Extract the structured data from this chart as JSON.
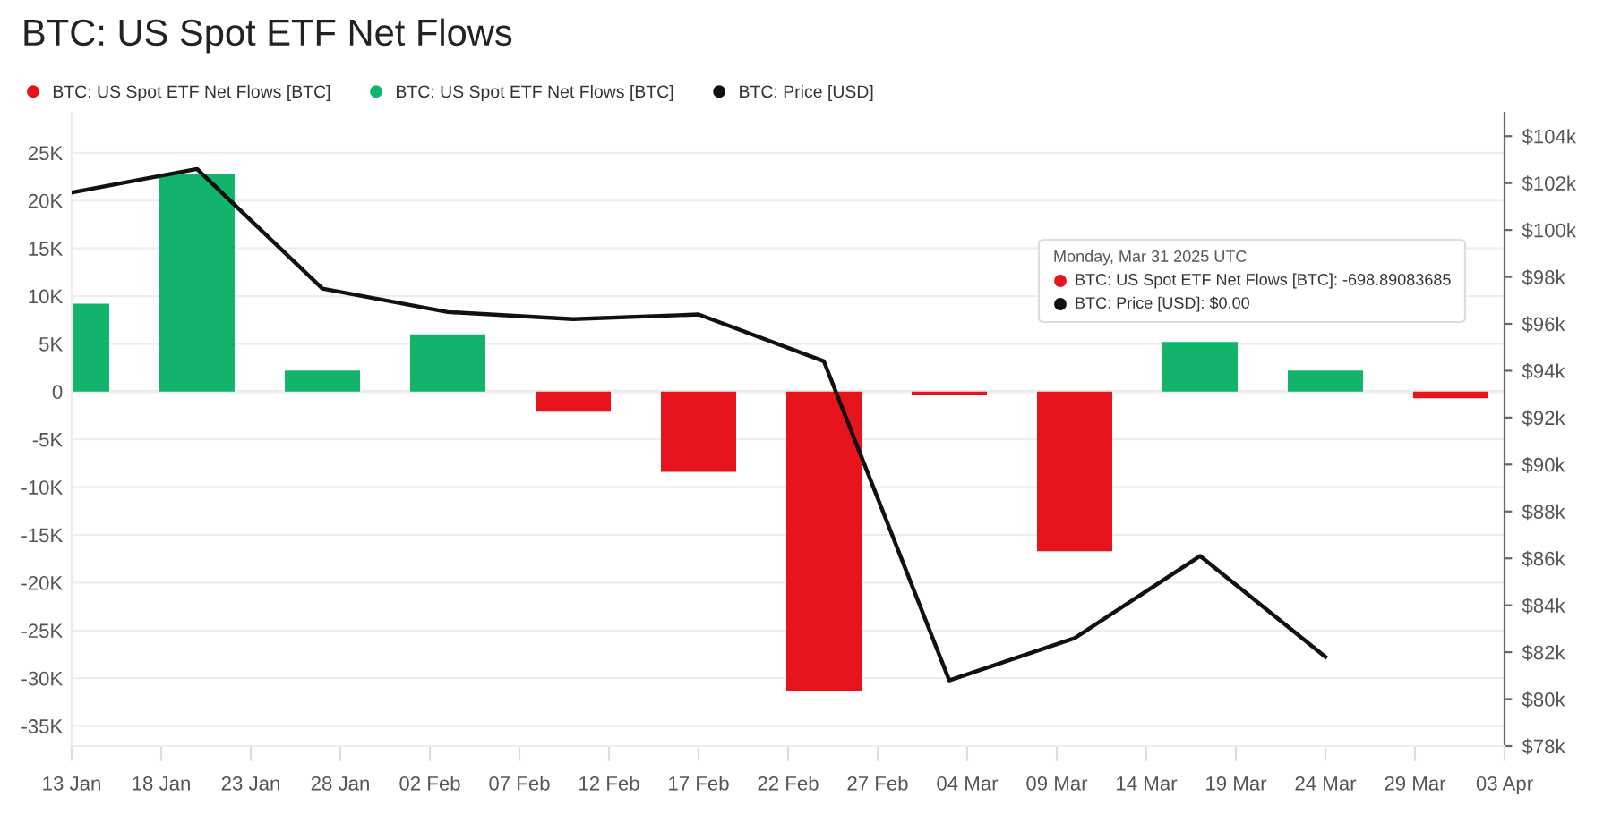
{
  "chart_data": {
    "type": "bar",
    "title": "BTC: US Spot ETF Net Flows",
    "x": [
      "2025-01-13",
      "2025-01-20",
      "2025-01-27",
      "2025-02-03",
      "2025-02-10",
      "2025-02-17",
      "2025-02-24",
      "2025-03-03",
      "2025-03-10",
      "2025-03-17",
      "2025-03-24",
      "2025-03-31"
    ],
    "series": [
      {
        "name": "BTC: US Spot ETF Net Flows [BTC]",
        "color": "#e8141b",
        "values": [
          null,
          null,
          null,
          null,
          -2100,
          -8400,
          -31300,
          -400,
          -16700,
          null,
          null,
          -700
        ]
      },
      {
        "name": "BTC: US Spot ETF Net Flows [BTC]",
        "color": "#12b36a",
        "values": [
          9200,
          22800,
          2200,
          6000,
          null,
          null,
          null,
          null,
          null,
          5200,
          2200,
          null
        ]
      },
      {
        "name": "BTC: Price [USD]",
        "type": "line",
        "axis": "y2",
        "color": "#111111",
        "x": [
          "2025-01-13",
          "2025-01-20",
          "2025-01-27",
          "2025-02-03",
          "2025-02-10",
          "2025-02-17",
          "2025-02-24",
          "2025-03-03",
          "2025-03-10",
          "2025-03-17",
          "2025-03-24"
        ],
        "values": [
          101600,
          102600,
          97500,
          96500,
          96200,
          96400,
          94400,
          80800,
          82600,
          86100,
          81800
        ]
      }
    ],
    "xlim": [
      "2025-01-13",
      "2025-04-03"
    ],
    "xticks": [
      {
        "value": "2025-01-13",
        "label": "13 Jan"
      },
      {
        "value": "2025-01-18",
        "label": "18 Jan"
      },
      {
        "value": "2025-01-23",
        "label": "23 Jan"
      },
      {
        "value": "2025-01-28",
        "label": "28 Jan"
      },
      {
        "value": "2025-02-02",
        "label": "02 Feb"
      },
      {
        "value": "2025-02-07",
        "label": "07 Feb"
      },
      {
        "value": "2025-02-12",
        "label": "12 Feb"
      },
      {
        "value": "2025-02-17",
        "label": "17 Feb"
      },
      {
        "value": "2025-02-22",
        "label": "22 Feb"
      },
      {
        "value": "2025-02-27",
        "label": "27 Feb"
      },
      {
        "value": "2025-03-04",
        "label": "04 Mar"
      },
      {
        "value": "2025-03-09",
        "label": "09 Mar"
      },
      {
        "value": "2025-03-14",
        "label": "14 Mar"
      },
      {
        "value": "2025-03-19",
        "label": "19 Mar"
      },
      {
        "value": "2025-03-24",
        "label": "24 Mar"
      },
      {
        "value": "2025-03-29",
        "label": "29 Mar"
      },
      {
        "value": "2025-04-03",
        "label": "03 Apr"
      }
    ],
    "ylim": [
      -37100,
      29200
    ],
    "yticks": [
      {
        "value": -35000,
        "label": "-35K"
      },
      {
        "value": -30000,
        "label": "-30K"
      },
      {
        "value": -25000,
        "label": "-25K"
      },
      {
        "value": -20000,
        "label": "-20K"
      },
      {
        "value": -15000,
        "label": "-15K"
      },
      {
        "value": -10000,
        "label": "-10K"
      },
      {
        "value": -5000,
        "label": "-5K"
      },
      0,
      {
        "value": 5000,
        "label": "5K"
      },
      {
        "value": 10000,
        "label": "10K"
      },
      {
        "value": 15000,
        "label": "15K"
      },
      {
        "value": 20000,
        "label": "20K"
      },
      {
        "value": 25000,
        "label": "25K"
      }
    ],
    "y2lim": [
      78000,
      105000
    ],
    "y2ticks": [
      {
        "value": 78000,
        "label": "$78k"
      },
      {
        "value": 80000,
        "label": "$80k"
      },
      {
        "value": 82000,
        "label": "$82k"
      },
      {
        "value": 84000,
        "label": "$84k"
      },
      {
        "value": 86000,
        "label": "$86k"
      },
      {
        "value": 88000,
        "label": "$88k"
      },
      {
        "value": 90000,
        "label": "$90k"
      },
      {
        "value": 92000,
        "label": "$92k"
      },
      {
        "value": 94000,
        "label": "$94k"
      },
      {
        "value": 96000,
        "label": "$96k"
      },
      {
        "value": 98000,
        "label": "$98k"
      },
      {
        "value": 100000,
        "label": "$100k"
      },
      {
        "value": 102000,
        "label": "$102k"
      },
      {
        "value": 104000,
        "label": "$104k"
      }
    ],
    "grid": "y",
    "legend": "top left",
    "annotations": [
      "Monday, Mar 31 2025 UTC",
      "BTC: US Spot ETF Net Flows [BTC]: -698.89083685",
      "BTC: Price [USD]: $0.00"
    ]
  }
}
